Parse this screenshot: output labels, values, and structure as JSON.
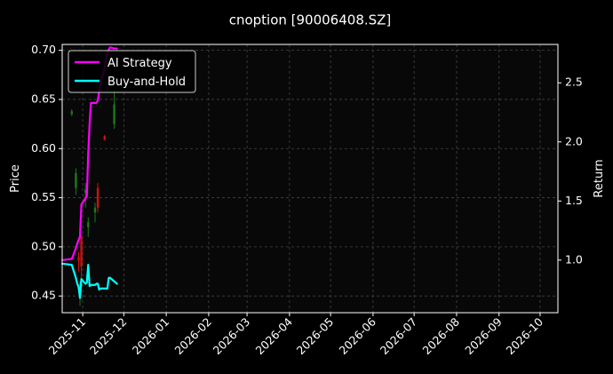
{
  "chart_data": {
    "type": "line",
    "title": "cnoption [90006408.SZ]",
    "ylabel": "Price",
    "y2label": "Return",
    "ylim": [
      0.433,
      0.706
    ],
    "y2lim": [
      0.555,
      2.825
    ],
    "xlim": [
      "2025-10-17",
      "2026-10-14"
    ],
    "grid": true,
    "legend_position": "top-left",
    "x_ticks": [
      "2025-11",
      "2025-12",
      "2026-01",
      "2026-02",
      "2026-03",
      "2026-04",
      "2026-05",
      "2026-06",
      "2026-07",
      "2026-08",
      "2026-09",
      "2026-10"
    ],
    "y_ticks": [
      "0.45",
      "0.50",
      "0.55",
      "0.60",
      "0.65",
      "0.70"
    ],
    "y2_ticks": [
      "1.0",
      "1.5",
      "2.0",
      "2.5"
    ],
    "colors": {
      "strategy": "#ff00ff",
      "buyhold": "#00ffff",
      "candle_up": "#1a7a1a",
      "candle_down": "#cc1111",
      "grid": "#444444",
      "axes": "#ffffff"
    },
    "series": [
      {
        "name": "AI Strategy",
        "axis": "return",
        "x": [
          "2025-10-17",
          "2025-10-24",
          "2025-10-27",
          "2025-10-28",
          "2025-10-29",
          "2025-10-30",
          "2025-10-31",
          "2025-11-03",
          "2025-11-04",
          "2025-11-05",
          "2025-11-06",
          "2025-11-07",
          "2025-11-10",
          "2025-11-11",
          "2025-11-12",
          "2025-11-13",
          "2025-11-14",
          "2025-11-17",
          "2025-11-18",
          "2025-11-19",
          "2025-11-20",
          "2025-11-21",
          "2025-11-24",
          "2025-11-25",
          "2025-11-26"
        ],
        "values": [
          1.0,
          1.01,
          1.1,
          1.14,
          1.17,
          1.2,
          1.47,
          1.52,
          1.54,
          1.9,
          2.15,
          2.33,
          2.33,
          2.33,
          2.35,
          2.43,
          2.5,
          2.62,
          2.7,
          2.75,
          2.78,
          2.8,
          2.79,
          2.79,
          2.79
        ]
      },
      {
        "name": "Buy-and-Hold",
        "axis": "return",
        "x": [
          "2025-10-17",
          "2025-10-24",
          "2025-10-27",
          "2025-10-28",
          "2025-10-29",
          "2025-10-30",
          "2025-10-31",
          "2025-11-03",
          "2025-11-04",
          "2025-11-05",
          "2025-11-06",
          "2025-11-07",
          "2025-11-10",
          "2025-11-11",
          "2025-11-12",
          "2025-11-13",
          "2025-11-14",
          "2025-11-17",
          "2025-11-18",
          "2025-11-19",
          "2025-11-20",
          "2025-11-21",
          "2025-11-24",
          "2025-11-25",
          "2025-11-26"
        ],
        "values": [
          0.97,
          0.96,
          0.85,
          0.8,
          0.77,
          0.68,
          0.84,
          0.8,
          0.81,
          0.96,
          0.78,
          0.79,
          0.79,
          0.8,
          0.8,
          0.75,
          0.76,
          0.76,
          0.76,
          0.76,
          0.85,
          0.85,
          0.82,
          0.81,
          0.8
        ]
      }
    ],
    "candles": [
      {
        "x": "2025-10-24",
        "open": 0.635,
        "close": 0.638,
        "high": 0.64,
        "low": 0.633
      },
      {
        "x": "2025-10-27",
        "open": 0.56,
        "close": 0.575,
        "high": 0.58,
        "low": 0.553
      },
      {
        "x": "2025-10-29",
        "open": 0.49,
        "close": 0.486,
        "high": 0.495,
        "low": 0.475
      },
      {
        "x": "2025-10-30",
        "open": 0.458,
        "close": 0.462,
        "high": 0.465,
        "low": 0.44
      },
      {
        "x": "2025-10-31",
        "open": 0.51,
        "close": 0.48,
        "high": 0.512,
        "low": 0.46
      },
      {
        "x": "2025-11-03",
        "open": 0.555,
        "close": 0.558,
        "high": 0.565,
        "low": 0.54
      },
      {
        "x": "2025-11-05",
        "open": 0.52,
        "close": 0.525,
        "high": 0.53,
        "low": 0.51
      },
      {
        "x": "2025-11-10",
        "open": 0.535,
        "close": 0.54,
        "high": 0.545,
        "low": 0.525
      },
      {
        "x": "2025-11-12",
        "open": 0.56,
        "close": 0.54,
        "high": 0.565,
        "low": 0.535
      },
      {
        "x": "2025-11-17",
        "open": 0.613,
        "close": 0.609,
        "high": 0.614,
        "low": 0.608
      },
      {
        "x": "2025-11-24",
        "open": 0.625,
        "close": 0.645,
        "high": 0.66,
        "low": 0.62
      }
    ]
  },
  "legend": {
    "strategy_label": "AI Strategy",
    "buyhold_label": "Buy-and-Hold"
  }
}
